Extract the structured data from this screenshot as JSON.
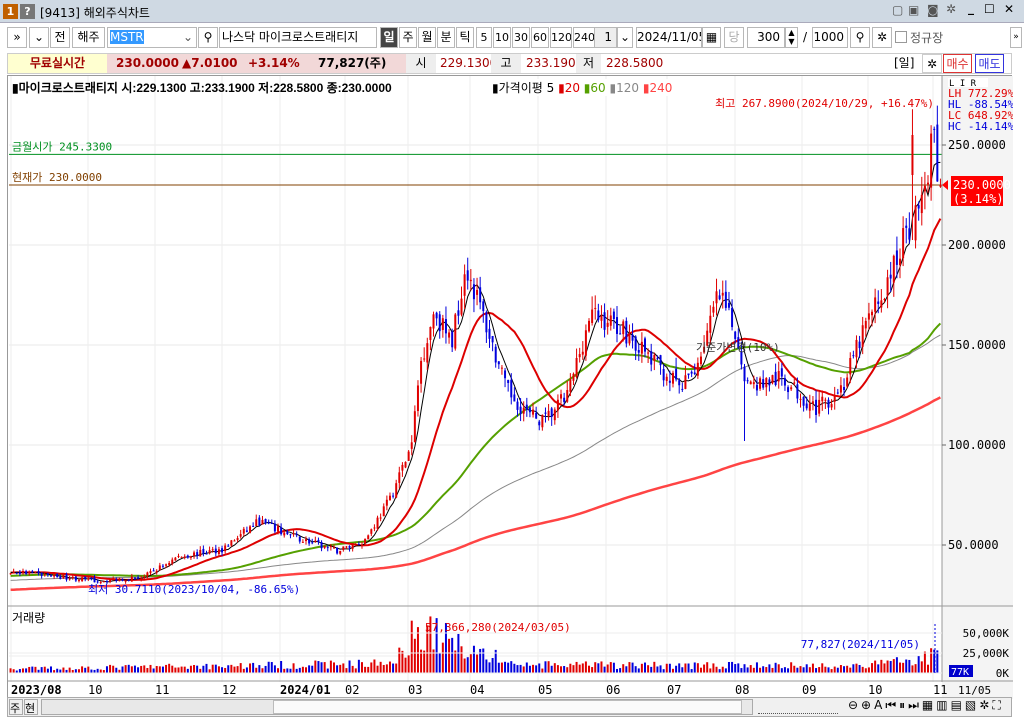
{
  "window": {
    "badge1": "1",
    "badge2": "?",
    "title": "[9413] 해외주식차트"
  },
  "toolbar": {
    "expand": "»",
    "collapse": "»",
    "prev": "전",
    "market": "해주",
    "symbol": "MSTR",
    "exchange_name": "나스닥   마이크로스트래티지",
    "periods": [
      "일",
      "주",
      "월",
      "분",
      "틱"
    ],
    "selected_period": "일",
    "intervals": [
      "5",
      "10",
      "30",
      "60",
      "120",
      "240"
    ],
    "unit": "1",
    "date": "2024/11/05",
    "dang": "당",
    "count": "300",
    "slash": "/",
    "max_count": "1000",
    "regular_session": "정규장"
  },
  "quote": {
    "realtime": "무료실시간",
    "price": "230.0000",
    "change": "▲7.0100",
    "change_pct": "+3.14%",
    "volume": "77,827(주)",
    "open_label": "시",
    "open": "229.1300",
    "high_label": "고",
    "high": "233.1900",
    "low_label": "저",
    "low": "228.5800",
    "period_tag": "[일]",
    "buy": "매수",
    "sell": "매도"
  },
  "legend": {
    "name": "마이크로스트래티지",
    "ohlc": "시:229.1300 고:233.1900 저:228.5800 종:230.0000",
    "ma_label": "가격이평",
    "ma": [
      "5",
      "20",
      "60",
      "120",
      "240"
    ]
  },
  "annotations": {
    "high": "최고 267.8900(2024/10/29, +16.47%)",
    "low": "최저 30.7110(2023/10/04, -86.65%)",
    "base_change": "기준가변경(10%)",
    "month_open": "금월시가 245.3300",
    "current": "현재가 230.0000",
    "vol_peak": "57,366,280(2024/03/05)",
    "vol_last": "77,827(2024/11/05)"
  },
  "stats": {
    "LH": "LH 772.29%",
    "HL": "HL -88.54%",
    "LC": "LC 648.92%",
    "HC": "HC -14.14%"
  },
  "price_tag": {
    "price": "230.0000",
    "pct": "(3.14%)"
  },
  "volume_pane": {
    "title": "거래량",
    "tag": "77K"
  },
  "bottom": {
    "btn1": "주",
    "btn2": "현",
    "last_date": "11/05"
  },
  "colors": {
    "up": "#e00000",
    "down": "#0000dd",
    "ma5": "#000000",
    "ma20": "#dd0000",
    "ma60": "#55a000",
    "ma120": "#888888",
    "ma240": "#ff4444"
  },
  "chart_data": {
    "type": "candlestick",
    "symbol": "MSTR",
    "bars": 300,
    "y_ticks": [
      50,
      100,
      150,
      200,
      250
    ],
    "y_tick_labels": [
      "50.0000",
      "100.0000",
      "150.0000",
      "200.0000",
      "250.0000"
    ],
    "x_labels": [
      "2023/08",
      "10",
      "11",
      "12",
      "2024/01",
      "02",
      "03",
      "04",
      "05",
      "06",
      "07",
      "08",
      "09",
      "10",
      "11"
    ],
    "close_keypoints": [
      [
        "2023/08/21",
        37
      ],
      [
        "2023/09/10",
        35
      ],
      [
        "2023/10/04",
        32
      ],
      [
        "2023/10/25",
        34
      ],
      [
        "2023/11/10",
        44
      ],
      [
        "2023/11/30",
        48
      ],
      [
        "2023/12/18",
        62
      ],
      [
        "2024/01/03",
        55
      ],
      [
        "2024/01/25",
        47
      ],
      [
        "2024/02/08",
        52
      ],
      [
        "2024/02/20",
        72
      ],
      [
        "2024/03/01",
        100
      ],
      [
        "2024/03/05",
        140
      ],
      [
        "2024/03/12",
        168
      ],
      [
        "2024/03/20",
        150
      ],
      [
        "2024/03/27",
        190
      ],
      [
        "2024/04/05",
        165
      ],
      [
        "2024/04/15",
        128
      ],
      [
        "2024/04/25",
        115
      ],
      [
        "2024/05/02",
        112
      ],
      [
        "2024/05/12",
        125
      ],
      [
        "2024/05/22",
        165
      ],
      [
        "2024/06/05",
        160
      ],
      [
        "2024/06/20",
        143
      ],
      [
        "2024/07/05",
        128
      ],
      [
        "2024/07/12",
        140
      ],
      [
        "2024/07/22",
        175
      ],
      [
        "2024/07/30",
        155
      ],
      [
        "2024/08/05",
        130
      ],
      [
        "2024/08/20",
        133
      ],
      [
        "2024/09/06",
        118
      ],
      [
        "2024/09/18",
        130
      ],
      [
        "2024/09/28",
        160
      ],
      [
        "2024/10/08",
        180
      ],
      [
        "2024/10/16",
        205
      ],
      [
        "2024/10/24",
        220
      ],
      [
        "2024/10/29",
        255
      ],
      [
        "2024/11/01",
        235
      ],
      [
        "2024/11/05",
        230
      ]
    ],
    "volume_keypoints_k": [
      [
        "2023/08/21",
        5000
      ],
      [
        "2024/02/20",
        12000
      ],
      [
        "2024/03/05",
        57366
      ],
      [
        "2024/03/20",
        40000
      ],
      [
        "2024/04/05",
        25000
      ],
      [
        "2024/04/20",
        10000
      ],
      [
        "2024/09/28",
        9000
      ],
      [
        "2024/10/15",
        16000
      ],
      [
        "2024/11/01",
        22000
      ],
      [
        "2024/11/05",
        78
      ]
    ],
    "vol_ticks": [
      "50,000K",
      "25,000K",
      "0K"
    ],
    "reference_lines": [
      {
        "label": "금월시가",
        "value": 245.33,
        "color": "#009020"
      },
      {
        "label": "현재가",
        "value": 230.0,
        "color": "#804000"
      }
    ]
  }
}
